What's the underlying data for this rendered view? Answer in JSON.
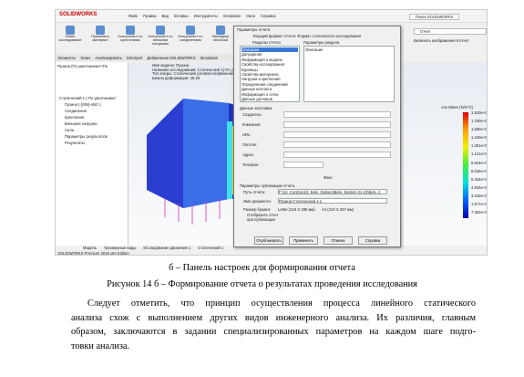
{
  "screenshot": {
    "logo": "SOLIDWORKS",
    "menu": [
      "Файл",
      "Правка",
      "Вид",
      "Вставка",
      "Инструменты",
      "Simulation",
      "Окно",
      "Справка"
    ],
    "search": "Поиск SOLIDWORKS",
    "ribbon": [
      "Новое исследование",
      "Применить материал",
      "Консультант по креплениям",
      "Консультант по внешним нагрузкам",
      "Консультант по соединениям",
      "Менеджер оболочки"
    ],
    "tabs": [
      "Элементы",
      "Эскиз",
      "Анализировать",
      "DimXpert",
      "Добавления SOLIDWORKS",
      "Simulation"
    ],
    "tree": [
      "Пузина (По умолчанию<<По",
      "Статический 1 (-По умолчанию<",
      "Пузина (-[SW]-АБС-)",
      "Соединения",
      "Крепления",
      "Внешние нагрузки",
      "Сила",
      "Параметры результатов",
      "Результаты"
    ],
    "model_info": [
      "Имя модели: Пузина",
      "Название исследования: Статический 1(-По умолчанию-)",
      "Тип эпюры: Статический узловой напряжение Напряжение1",
      "Шкала деформации: 26.28"
    ],
    "legend": {
      "title": "von Mises (N/m^2)",
      "labels": [
        "1.910e+07",
        "1.750e+07",
        "1.600e+07",
        "1.440e+07",
        "1.281e+07",
        "1.121e+07",
        "9.624e+06",
        "8.026e+06",
        "6.434e+06",
        "4.834e+06",
        "3.233e+06",
        "1.671e+06",
        "7.362e+04"
      ]
    },
    "side_panel": {
      "search": "Отчет",
      "option": "Включить изображения в отчет"
    },
    "bottom_tabs": [
      "Модель",
      "Трехмерные виды",
      "Исследование движения 1",
      "Статический 1"
    ],
    "status": "SOLIDWORKS Premium 2018 x64 Edition",
    "dialog": {
      "title": "Параметры отчета",
      "format": "Текущий формат отчета: Формат статического исследования",
      "sections_label": "Разделы отчета",
      "params_label": "Параметры раздела",
      "sections": [
        "Описание",
        "Допущения",
        "Информация о модели",
        "Свойства исследования",
        "Единицы",
        "Свойства материала",
        "Нагрузки и крепления",
        "Определения соединений",
        "Данные контакта",
        "Информация о сетке",
        "Данные датчиков"
      ],
      "selected_param": "Описание",
      "header_label": "Данные заголовка",
      "header_fields": [
        "Создатель:",
        "Компания:",
        "URL:",
        "Логотип:",
        "Адрес:",
        "Телефон:"
      ],
      "fax": "Факс:",
      "publish_label": "Параметры публикации отчета",
      "path_label": "Путь отчета:",
      "path": "F:\\12_ConDocs\\2_Belo_Diplomi\\Belo_Diplomi 21-22\\Belo_2",
      "name_label": "Имя документа:",
      "name": "Пузина-Статический 1-1",
      "paper_label": "Размер бумаги:",
      "paper": [
        "Letter (216 X 280 мм)",
        "A4 (210 X 297 мм)"
      ],
      "show": "Отобразить отчет при публикации",
      "buttons": [
        "Опубликовать",
        "Применить",
        "Отмена",
        "Справка"
      ]
    }
  },
  "subcaption": "б – Панель настроек для формирования отчета",
  "caption": "Рисунок 14 б – Формирование отчета о результатах проведения исследования",
  "paragraph": [
    "Следует отметить, что принцип осуществления процесса линейного статического",
    "анализа схож с выполнением других видов инженерного анализа. Их различия, главным",
    "образом, заключаются в задании специализированных параметров на каждом шаге подго-",
    "товки анализа."
  ]
}
